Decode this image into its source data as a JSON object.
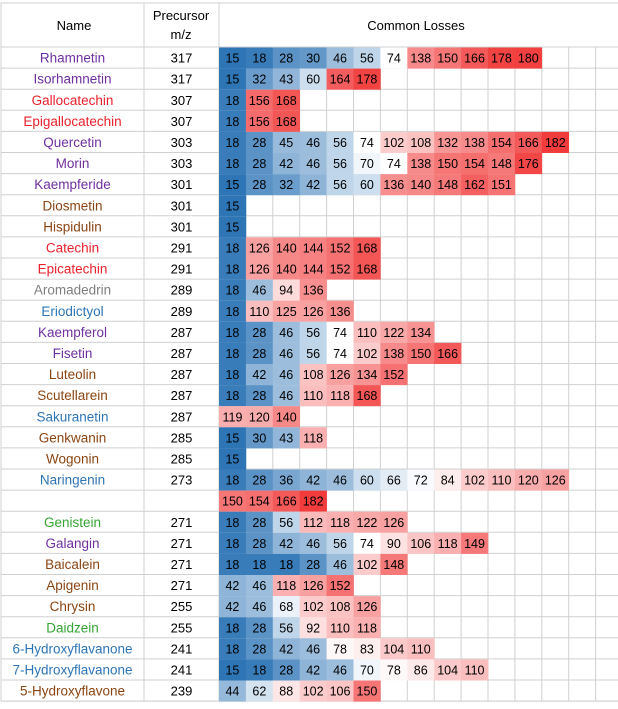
{
  "chart_data": {
    "type": "heatmap",
    "headers": {
      "name": "Name",
      "precursor": [
        "Precursor",
        "m/z"
      ],
      "losses": "Common Losses"
    },
    "name_colors": {
      "purple": "#7030A0",
      "red": "#E8212B",
      "brown": "#8B4513",
      "grey": "#7F7F7F",
      "blue": "#2E75B6",
      "green": "#33A532"
    },
    "heat_scale": {
      "low": "#2E75B6",
      "mid": "#FFFFFF",
      "high": "#F23C3C",
      "range": [
        15,
        182
      ]
    },
    "rows": [
      {
        "name": "Rhamnetin",
        "color": "purple",
        "mz": "317",
        "losses": [
          15,
          18,
          28,
          30,
          46,
          56,
          74,
          138,
          150,
          166,
          178,
          180
        ]
      },
      {
        "name": "Isorhamnetin",
        "color": "purple",
        "mz": "317",
        "losses": [
          15,
          32,
          43,
          60,
          164,
          178
        ]
      },
      {
        "name": "Gallocatechin",
        "color": "red",
        "mz": "307",
        "losses": [
          18,
          156,
          168
        ]
      },
      {
        "name": "Epigallocatechin",
        "color": "red",
        "mz": "307",
        "losses": [
          18,
          156,
          168
        ]
      },
      {
        "name": "Quercetin",
        "color": "purple",
        "mz": "303",
        "losses": [
          18,
          28,
          45,
          46,
          56,
          74,
          102,
          108,
          132,
          138,
          154,
          166,
          182
        ]
      },
      {
        "name": "Morin",
        "color": "purple",
        "mz": "303",
        "losses": [
          18,
          28,
          42,
          46,
          56,
          70,
          74,
          138,
          150,
          154,
          148,
          176
        ]
      },
      {
        "name": "Kaempferide",
        "color": "purple",
        "mz": "301",
        "losses": [
          15,
          28,
          32,
          42,
          56,
          60,
          136,
          140,
          148,
          162,
          151
        ]
      },
      {
        "name": "Diosmetin",
        "color": "brown",
        "mz": "301",
        "losses": [
          15
        ]
      },
      {
        "name": "Hispidulin",
        "color": "brown",
        "mz": "301",
        "losses": [
          15
        ]
      },
      {
        "name": "Catechin",
        "color": "red",
        "mz": "291",
        "losses": [
          18,
          126,
          140,
          144,
          152,
          168
        ]
      },
      {
        "name": "Epicatechin",
        "color": "red",
        "mz": "291",
        "losses": [
          18,
          126,
          140,
          144,
          152,
          168
        ]
      },
      {
        "name": "Aromadedrin",
        "color": "grey",
        "mz": "289",
        "losses": [
          18,
          46,
          94,
          136
        ]
      },
      {
        "name": "Eriodictyol",
        "color": "blue",
        "mz": "289",
        "losses": [
          18,
          110,
          125,
          126,
          136
        ]
      },
      {
        "name": "Kaempferol",
        "color": "purple",
        "mz": "287",
        "losses": [
          18,
          28,
          46,
          56,
          74,
          110,
          122,
          134
        ]
      },
      {
        "name": "Fisetin",
        "color": "purple",
        "mz": "287",
        "losses": [
          18,
          28,
          46,
          56,
          74,
          102,
          138,
          150,
          166
        ]
      },
      {
        "name": "Luteolin",
        "color": "brown",
        "mz": "287",
        "losses": [
          18,
          42,
          46,
          108,
          126,
          134,
          152
        ]
      },
      {
        "name": "Scutellarein",
        "color": "brown",
        "mz": "287",
        "losses": [
          18,
          28,
          46,
          110,
          118,
          168
        ]
      },
      {
        "name": "Sakuranetin",
        "color": "blue",
        "mz": "287",
        "losses": [
          119,
          120,
          140
        ]
      },
      {
        "name": "Genkwanin",
        "color": "brown",
        "mz": "285",
        "losses": [
          15,
          30,
          43,
          118
        ]
      },
      {
        "name": "Wogonin",
        "color": "brown",
        "mz": "285",
        "losses": [
          15
        ]
      },
      {
        "name": "Naringenin",
        "color": "blue",
        "mz": "273",
        "losses": [
          18,
          28,
          36,
          42,
          46,
          60,
          66,
          72,
          84,
          102,
          110,
          120,
          126
        ]
      },
      {
        "name": "",
        "color": "blue",
        "mz": "",
        "losses": [
          150,
          154,
          166,
          182
        ]
      },
      {
        "name": "Genistein",
        "color": "green",
        "mz": "271",
        "losses": [
          18,
          28,
          56,
          112,
          118,
          122,
          126
        ]
      },
      {
        "name": "Galangin",
        "color": "purple",
        "mz": "271",
        "losses": [
          18,
          28,
          42,
          46,
          56,
          74,
          90,
          106,
          118,
          149
        ]
      },
      {
        "name": "Baicalein",
        "color": "brown",
        "mz": "271",
        "losses": [
          18,
          18,
          18,
          28,
          46,
          102,
          148
        ]
      },
      {
        "name": "Apigenin",
        "color": "brown",
        "mz": "271",
        "losses": [
          42,
          46,
          118,
          126,
          152
        ]
      },
      {
        "name": "Chrysin",
        "color": "brown",
        "mz": "255",
        "losses": [
          42,
          46,
          68,
          102,
          108,
          126
        ]
      },
      {
        "name": "Daidzein",
        "color": "green",
        "mz": "255",
        "losses": [
          18,
          28,
          56,
          92,
          110,
          118
        ]
      },
      {
        "name": "6-Hydroxyflavanone",
        "color": "blue",
        "mz": "241",
        "losses": [
          18,
          28,
          42,
          46,
          78,
          83,
          104,
          110
        ]
      },
      {
        "name": "7-Hydroxyflavanone",
        "color": "blue",
        "mz": "241",
        "losses": [
          15,
          18,
          28,
          42,
          46,
          70,
          78,
          86,
          104,
          110
        ]
      },
      {
        "name": "5-Hydroxyflavone",
        "color": "brown",
        "mz": "239",
        "losses": [
          44,
          62,
          88,
          102,
          106,
          150
        ]
      }
    ]
  }
}
